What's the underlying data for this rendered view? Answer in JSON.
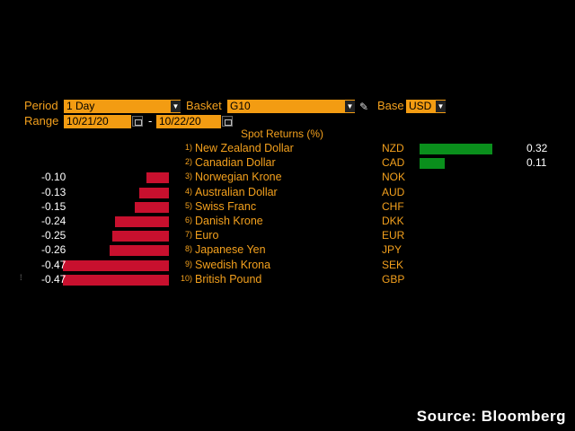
{
  "controls": {
    "period_label": "Period",
    "period_value": "1 Day",
    "basket_label": "Basket",
    "basket_value": "G10",
    "base_label": "Base",
    "base_value": "USD",
    "range_label": "Range",
    "range_start": "10/21/20",
    "range_sep": "-",
    "range_end": "10/22/20"
  },
  "title": "Spot Returns (%)",
  "chart_data": {
    "type": "bar",
    "title": "Spot Returns (%)",
    "categories": [
      "New Zealand Dollar",
      "Canadian Dollar",
      "Norwegian Krone",
      "Australian Dollar",
      "Swiss Franc",
      "Danish Krone",
      "Euro",
      "Japanese Yen",
      "Swedish Krona",
      "British Pound"
    ],
    "series": [
      {
        "values": [
          0.32,
          0.11,
          -0.1,
          -0.13,
          -0.15,
          -0.24,
          -0.25,
          -0.26,
          -0.47,
          -0.47
        ]
      }
    ]
  },
  "rows": [
    {
      "rank": "1)",
      "name": "New Zealand Dollar",
      "code": "NZD",
      "value": "0.32"
    },
    {
      "rank": "2)",
      "name": "Canadian Dollar",
      "code": "CAD",
      "value": "0.11"
    },
    {
      "rank": "3)",
      "name": "Norwegian Krone",
      "code": "NOK",
      "value": "-0.10"
    },
    {
      "rank": "4)",
      "name": "Australian Dollar",
      "code": "AUD",
      "value": "-0.13"
    },
    {
      "rank": "5)",
      "name": "Swiss Franc",
      "code": "CHF",
      "value": "-0.15"
    },
    {
      "rank": "6)",
      "name": "Danish Krone",
      "code": "DKK",
      "value": "-0.24"
    },
    {
      "rank": "7)",
      "name": "Euro",
      "code": "EUR",
      "value": "-0.25"
    },
    {
      "rank": "8)",
      "name": "Japanese Yen",
      "code": "JPY",
      "value": "-0.26"
    },
    {
      "rank": "9)",
      "name": "Swedish Krona",
      "code": "SEK",
      "value": "-0.47"
    },
    {
      "rank": "10)",
      "name": "British Pound",
      "code": "GBP",
      "value": "-0.47"
    }
  ],
  "source": "Source: Bloomberg",
  "colors": {
    "negative": "#c8102e",
    "positive": "#0a8f1c",
    "accent": "#f3a01d"
  }
}
